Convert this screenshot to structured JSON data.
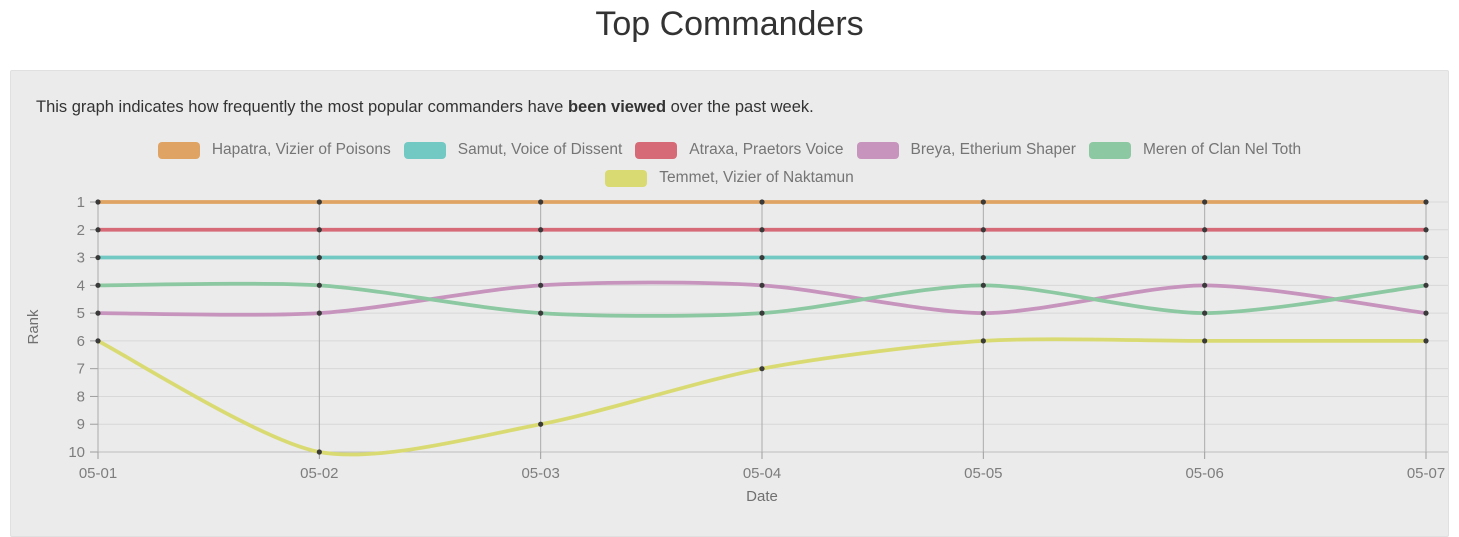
{
  "page": {
    "title": "Top Commanders",
    "description": {
      "pre": "This graph indicates how frequently the most popular commanders have ",
      "bold": "been viewed",
      "post": " over the past week."
    }
  },
  "chart_data": {
    "type": "line",
    "title": "Top Commanders",
    "x": [
      "05-01",
      "05-02",
      "05-03",
      "05-04",
      "05-05",
      "05-06",
      "05-07"
    ],
    "xlabel": "Date",
    "ylabel": "Rank",
    "ylim": [
      1,
      10
    ],
    "y_inverted": true,
    "y_ticks": [
      1,
      2,
      3,
      4,
      5,
      6,
      7,
      8,
      9,
      10
    ],
    "grid": true,
    "legend_position": "top",
    "point_style": "small black dots at every data point",
    "series": [
      {
        "name": "Hapatra, Vizier of Poisons",
        "color": "#dfa464",
        "values": [
          1,
          1,
          1,
          1,
          1,
          1,
          1
        ]
      },
      {
        "name": "Samut, Voice of Dissent",
        "color": "#72c8c3",
        "values": [
          3,
          3,
          3,
          3,
          3,
          3,
          3
        ]
      },
      {
        "name": "Atraxa, Praetors Voice",
        "color": "#d66a76",
        "values": [
          2,
          2,
          2,
          2,
          2,
          2,
          2
        ]
      },
      {
        "name": "Breya, Etherium Shaper",
        "color": "#c694bd",
        "values": [
          5,
          5,
          4,
          4,
          5,
          4,
          5
        ]
      },
      {
        "name": "Meren of Clan Nel Toth",
        "color": "#8cc8a1",
        "values": [
          4,
          4,
          5,
          5,
          4,
          5,
          4
        ]
      },
      {
        "name": "Temmet, Vizier of Naktamun",
        "color": "#d9db72",
        "values": [
          6,
          10,
          9,
          7,
          6,
          6,
          6
        ]
      }
    ]
  }
}
